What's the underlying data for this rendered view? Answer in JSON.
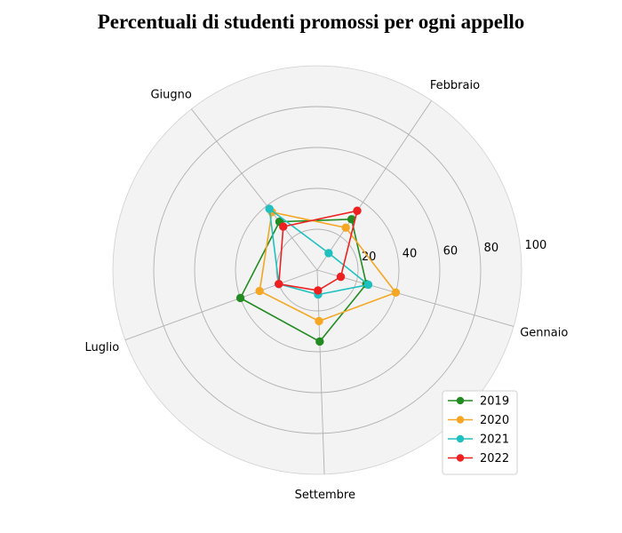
{
  "chart_data": {
    "type": "radar",
    "title": "Percentuali di studenti promossi per ogni appello",
    "categories": [
      "Gennaio",
      "Febbraio",
      "Giugno",
      "Luglio",
      "Settembre"
    ],
    "rlim": [
      0,
      100
    ],
    "rticks": [
      20,
      40,
      60,
      80,
      100
    ],
    "grid": true,
    "legend_position": "bottom-right",
    "series": [
      {
        "name": "2019",
        "color": "#228b22",
        "values": [
          25,
          30,
          30,
          40,
          35
        ]
      },
      {
        "name": "2020",
        "color": "#f5a623",
        "values": [
          40,
          25,
          36,
          30,
          25
        ]
      },
      {
        "name": "2021",
        "color": "#20c0c0",
        "values": [
          26,
          10,
          38,
          20,
          12
        ]
      },
      {
        "name": "2022",
        "color": "#ee2020",
        "values": [
          12,
          35,
          27,
          20,
          10
        ]
      }
    ]
  }
}
